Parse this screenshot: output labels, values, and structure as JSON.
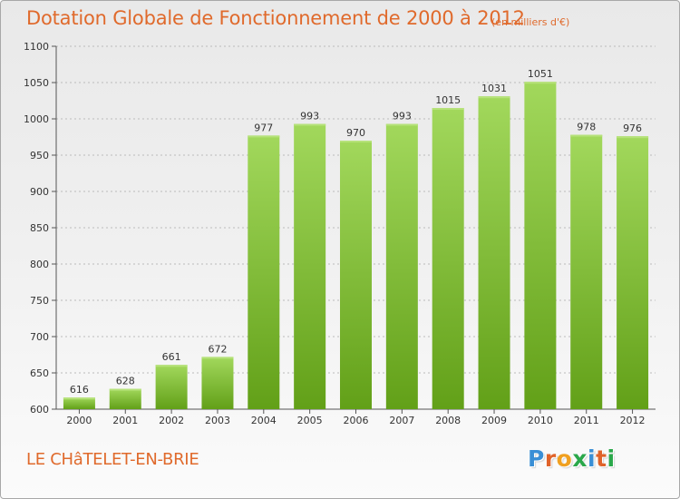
{
  "header": {
    "title": "Dotation Globale de Fonctionnement de 2000 à 2012",
    "unit": "(en milliers d'€)"
  },
  "footer": {
    "commune": "LE CHâTELET-EN-BRIE",
    "logo_icon": "proxiti-logo"
  },
  "colors": {
    "title": "#e06a2c",
    "bar_light": "#9fd65a",
    "bar_dark": "#64a019",
    "grid": "#bbbbbb"
  },
  "chart_data": {
    "type": "bar",
    "title": "Dotation Globale de Fonctionnement de 2000 à 2012",
    "subtitle": "(en milliers d'€)",
    "xlabel": "",
    "ylabel": "",
    "categories": [
      "2000",
      "2001",
      "2002",
      "2003",
      "2004",
      "2005",
      "2006",
      "2007",
      "2008",
      "2009",
      "2010",
      "2011",
      "2012"
    ],
    "values": [
      616,
      628,
      661,
      672,
      977,
      993,
      970,
      993,
      1015,
      1031,
      1051,
      978,
      976
    ],
    "ylim": [
      600,
      1100
    ],
    "yticks": [
      600,
      650,
      700,
      750,
      800,
      850,
      900,
      950,
      1000,
      1050,
      1100
    ],
    "grid": true,
    "legend": "none"
  }
}
